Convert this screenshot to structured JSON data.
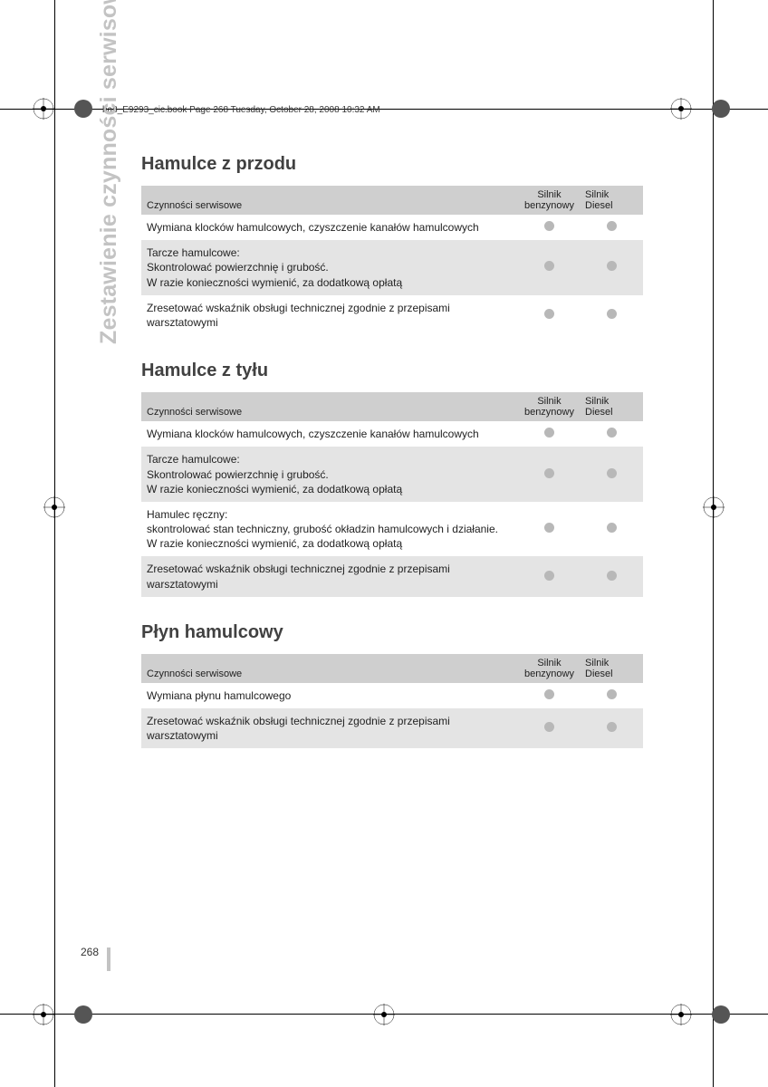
{
  "meta": {
    "header_line": "ba8_E9293_cic.book  Page 268  Tuesday, October 28, 2008  10:32 AM",
    "side_label": "Zestawienie czynności serwisowych",
    "page_number": "268"
  },
  "columns": {
    "c1": "Czynności serwisowe",
    "c2": "Silnik benzynowy",
    "c3": "Silnik Diesel"
  },
  "sections": [
    {
      "title": "Hamulce z przodu",
      "rows": [
        {
          "text": "Wymiana klocków hamulcowych, czyszczenie kanałów hamulcowych",
          "petrol": true,
          "diesel": true
        },
        {
          "text": "Tarcze hamulcowe:\nSkontrolować powierzchnię i grubość.\nW razie konieczności wymienić, za dodatkową opłatą",
          "petrol": true,
          "diesel": true
        },
        {
          "text": "Zresetować wskaźnik obsługi technicznej zgodnie z przepisami warsztatowymi",
          "petrol": true,
          "diesel": true
        }
      ]
    },
    {
      "title": "Hamulce z tyłu",
      "rows": [
        {
          "text": "Wymiana klocków hamulcowych, czyszczenie kanałów hamulcowych",
          "petrol": true,
          "diesel": true
        },
        {
          "text": "Tarcze hamulcowe:\nSkontrolować powierzchnię i grubość.\nW razie konieczności wymienić, za dodatkową opłatą",
          "petrol": true,
          "diesel": true
        },
        {
          "text": "Hamulec ręczny:\nskontrolować stan techniczny, grubość okładzin hamulcowych i działanie.\nW razie konieczności wymienić, za dodatkową opłatą",
          "petrol": true,
          "diesel": true
        },
        {
          "text": "Zresetować wskaźnik obsługi technicznej zgodnie z przepisami warsztatowymi",
          "petrol": true,
          "diesel": true
        }
      ]
    },
    {
      "title": "Płyn hamulcowy",
      "rows": [
        {
          "text": "Wymiana płynu hamulcowego",
          "petrol": true,
          "diesel": true
        },
        {
          "text": "Zresetować wskaźnik obsługi technicznej zgodnie z przepisami warsztatowymi",
          "petrol": true,
          "diesel": true
        }
      ]
    }
  ],
  "colors": {
    "header_row": "#cfcfcf",
    "row_even": "#e4e4e4",
    "row_odd": "#ffffff",
    "dot": "#b8b8b8",
    "side_label": "#c3c3c3",
    "title": "#414141"
  }
}
